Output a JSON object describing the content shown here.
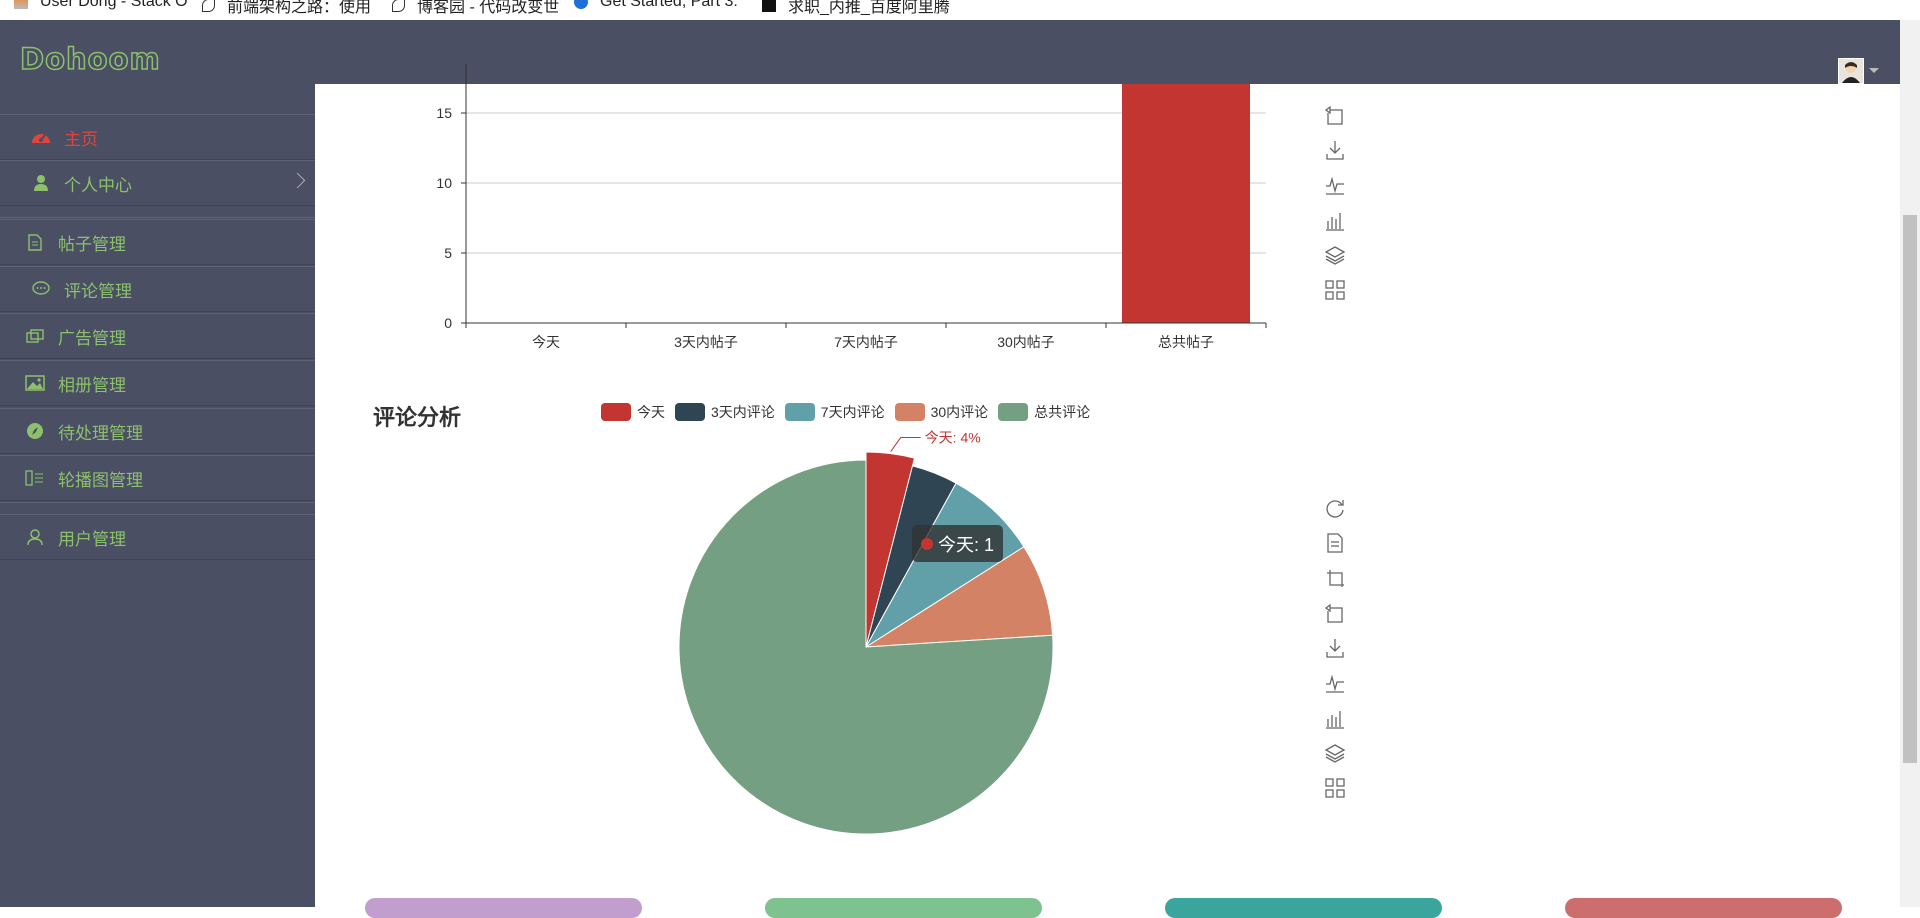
{
  "bookmarks": [
    {
      "label": "User Dong - Stack O"
    },
    {
      "label": "前端架构之路：使用"
    },
    {
      "label": "博客园 - 代码改变世"
    },
    {
      "label": "Get Started, Part 3:"
    },
    {
      "label": "求职_内推_百度阿里腾"
    }
  ],
  "header": {
    "logo": "Dohoom"
  },
  "sidebar": {
    "items": [
      {
        "label": "主页",
        "icon": "dashboard-icon",
        "active": true
      },
      {
        "label": "个人中心",
        "icon": "user-icon"
      },
      {
        "label": "帖子管理",
        "icon": "document-icon"
      },
      {
        "label": "评论管理",
        "icon": "comment-icon"
      },
      {
        "label": "广告管理",
        "icon": "ad-icon"
      },
      {
        "label": "相册管理",
        "icon": "image-icon"
      },
      {
        "label": "待处理管理",
        "icon": "compass-icon"
      },
      {
        "label": "轮播图管理",
        "icon": "carousel-icon"
      },
      {
        "label": "用户管理",
        "icon": "person-icon"
      }
    ]
  },
  "colors": {
    "sidebar_bg": "#4a4f63",
    "accent_green": "#8cc06c",
    "active_red": "#e0453d"
  },
  "chart_data": [
    {
      "type": "bar",
      "categories": [
        "今天",
        "3天内帖子",
        "7天内帖子",
        "30内帖子",
        "总共帖子"
      ],
      "values": [
        0,
        0,
        0,
        0,
        20
      ],
      "yticks": [
        "0",
        "5",
        "10",
        "15"
      ],
      "ylim": [
        0,
        20
      ],
      "color": "#c23531",
      "grid": true
    },
    {
      "type": "pie",
      "title": "评论分析",
      "legend": [
        "今天",
        "3天内评论",
        "7天内评论",
        "30内评论",
        "总共评论"
      ],
      "legend_position": "top",
      "slices": [
        {
          "name": "今天",
          "value": 1,
          "color": "#c23531"
        },
        {
          "name": "3天内评论",
          "value": 1,
          "color": "#2f4554"
        },
        {
          "name": "7天内评论",
          "value": 2,
          "color": "#61a0a8"
        },
        {
          "name": "30内评论",
          "value": 2,
          "color": "#d48265"
        },
        {
          "name": "总共评论",
          "value": 19,
          "color": "#749f83"
        }
      ],
      "highlight_label": "今天: 4%",
      "tooltip": "今天: 1"
    }
  ],
  "bottom_cards": [
    {
      "color": "#c29ecf"
    },
    {
      "color": "#7ec28f"
    },
    {
      "color": "#3aa59c"
    },
    {
      "color": "#cd6e6e"
    }
  ]
}
